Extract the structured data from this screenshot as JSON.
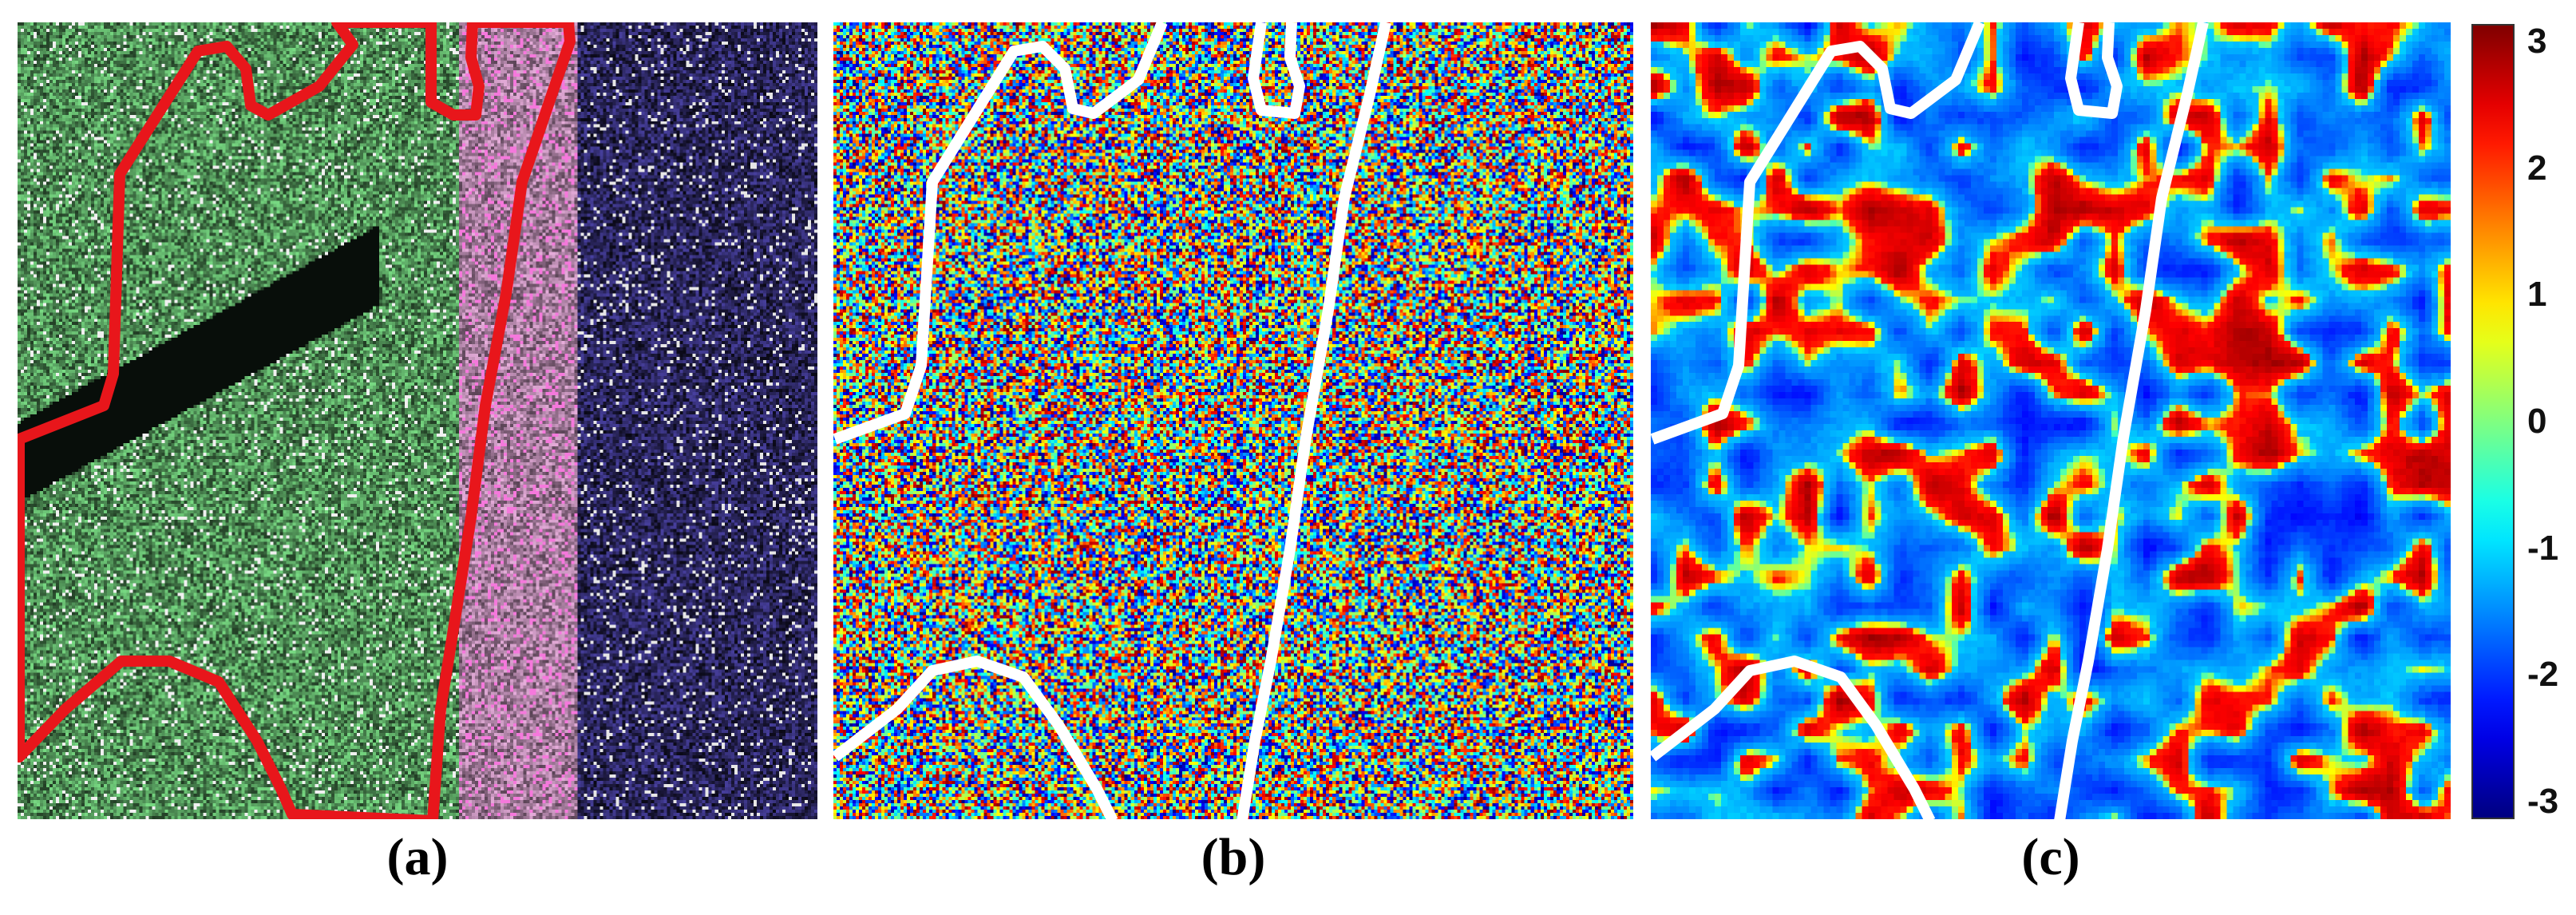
{
  "figure": {
    "panels": [
      {
        "id": "a",
        "caption": "(a)",
        "outline_color": "#e8161b",
        "content": "Pauli RGB SAR image"
      },
      {
        "id": "b",
        "caption": "(b)",
        "outline_color": "#ffffff",
        "content": "random phase map"
      },
      {
        "id": "c",
        "caption": "(c)",
        "outline_color": "#ffffff",
        "content": "filtered phase map"
      }
    ],
    "colorbar": {
      "ticks": [
        "3",
        "2",
        "1",
        "0",
        "-1",
        "-2",
        "-3"
      ],
      "min": -3.14,
      "max": 3.14,
      "colormap": "jet"
    }
  }
}
